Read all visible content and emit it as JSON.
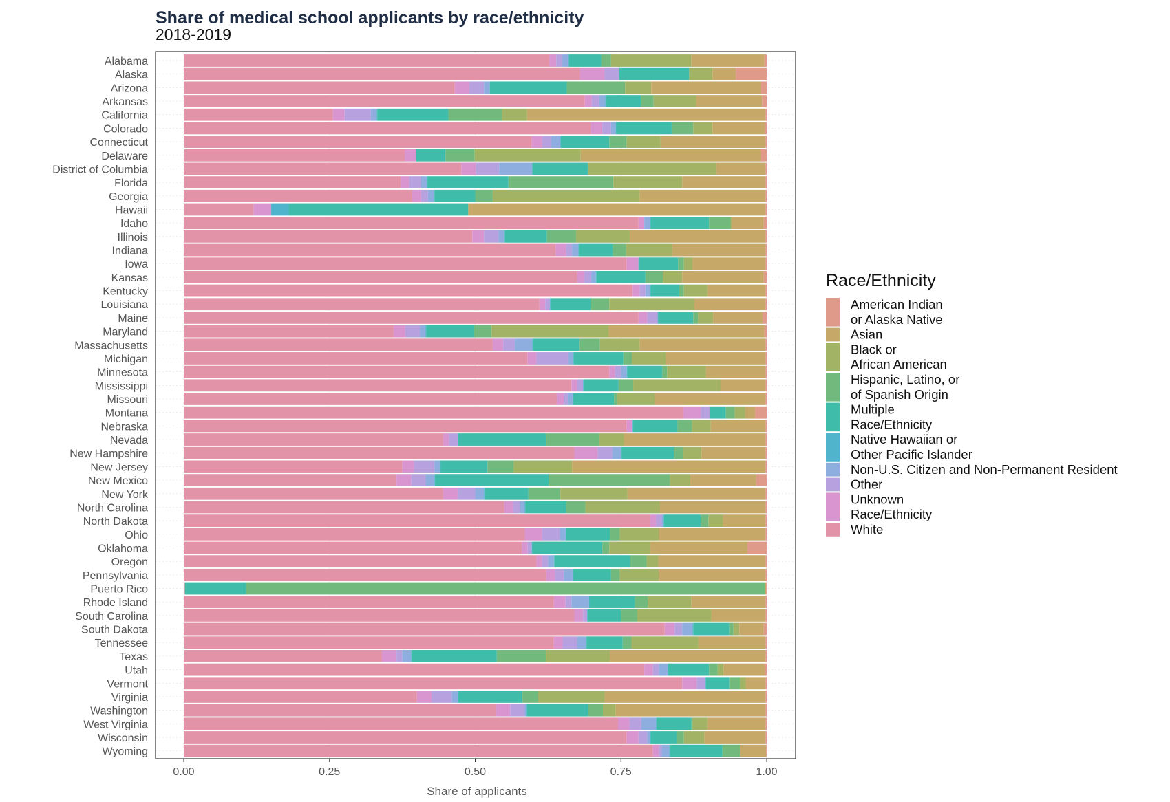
{
  "chart_data": {
    "type": "bar",
    "orientation": "horizontal",
    "stacked": true,
    "title": "Share of medical school applicants by race/ethnicity",
    "subtitle": "2018-2019",
    "xlabel": "Share of applicants",
    "ylabel": "",
    "xlim": [
      0,
      1
    ],
    "x_ticks": [
      "0.00",
      "0.25",
      "0.50",
      "0.75",
      "1.00"
    ],
    "grid": true,
    "legend_position": "right",
    "legend_title": "Race/Ethnicity",
    "stack_order": [
      "White",
      "Unknown Race/Ethnicity",
      "Other",
      "Non-U.S. Citizen and Non-Permanent Resident",
      "Native Hawaiian or Other Pacific Islander",
      "Multiple Race/Ethnicity",
      "Hispanic, Latino, or of Spanish Origin",
      "Black or African American",
      "Asian",
      "American Indian or Alaska Native"
    ],
    "legend": [
      {
        "key": "aian",
        "lines": [
          "American Indian",
          "or Alaska Native"
        ],
        "color": "#df9a8a"
      },
      {
        "key": "asian",
        "lines": [
          "Asian"
        ],
        "color": "#c6a968"
      },
      {
        "key": "black",
        "lines": [
          "Black or",
          "African American"
        ],
        "color": "#a2b365"
      },
      {
        "key": "hisp",
        "lines": [
          "Hispanic, Latino, or",
          "of Spanish Origin"
        ],
        "color": "#72b97e"
      },
      {
        "key": "multi",
        "lines": [
          "Multiple",
          "Race/Ethnicity"
        ],
        "color": "#40bcaa"
      },
      {
        "key": "nhpi",
        "lines": [
          "Native Hawaiian or",
          "Other Pacific Islander"
        ],
        "color": "#4fb4cc"
      },
      {
        "key": "noncit",
        "lines": [
          "Non-U.S. Citizen and Non-Permanent Resident"
        ],
        "color": "#8eaee0"
      },
      {
        "key": "other",
        "lines": [
          "Other"
        ],
        "color": "#b7a1df"
      },
      {
        "key": "unknown",
        "lines": [
          "Unknown",
          "Race/Ethnicity"
        ],
        "color": "#d895cf"
      },
      {
        "key": "white",
        "lines": [
          "White"
        ],
        "color": "#e393a8"
      }
    ],
    "categories": [
      "Alabama",
      "Alaska",
      "Arizona",
      "Arkansas",
      "California",
      "Colorado",
      "Connecticut",
      "Delaware",
      "District of Columbia",
      "Florida",
      "Georgia",
      "Hawaii",
      "Idaho",
      "Illinois",
      "Indiana",
      "Iowa",
      "Kansas",
      "Kentucky",
      "Louisiana",
      "Maine",
      "Maryland",
      "Massachusetts",
      "Michigan",
      "Minnesota",
      "Mississippi",
      "Missouri",
      "Montana",
      "Nebraska",
      "Nevada",
      "New Hampshire",
      "New Jersey",
      "New Mexico",
      "New York",
      "North Carolina",
      "North Dakota",
      "Ohio",
      "Oklahoma",
      "Oregon",
      "Pennsylvania",
      "Puerto Rico",
      "Rhode Island",
      "South Carolina",
      "South Dakota",
      "Tennessee",
      "Texas",
      "Utah",
      "Vermont",
      "Virginia",
      "Washington",
      "West Virginia",
      "Wisconsin",
      "Wyoming"
    ],
    "series_keys": [
      "white",
      "unknown",
      "other",
      "noncit",
      "nhpi",
      "multi",
      "hisp",
      "black",
      "asian",
      "aian"
    ],
    "rows": [
      [
        0.627,
        0.012,
        0.01,
        0.011,
        0.001,
        0.055,
        0.017,
        0.138,
        0.125,
        0.004
      ],
      [
        0.68,
        0.042,
        0.025,
        0.0,
        0.0,
        0.12,
        0.0,
        0.04,
        0.04,
        0.053
      ],
      [
        0.465,
        0.025,
        0.025,
        0.01,
        0.0,
        0.132,
        0.1,
        0.045,
        0.188,
        0.01
      ],
      [
        0.688,
        0.012,
        0.013,
        0.01,
        0.001,
        0.06,
        0.022,
        0.073,
        0.113,
        0.008
      ],
      [
        0.256,
        0.02,
        0.045,
        0.01,
        0.001,
        0.122,
        0.092,
        0.043,
        0.409,
        0.002
      ],
      [
        0.698,
        0.02,
        0.015,
        0.008,
        0.001,
        0.095,
        0.037,
        0.033,
        0.09,
        0.003
      ],
      [
        0.597,
        0.018,
        0.015,
        0.016,
        0.001,
        0.083,
        0.03,
        0.058,
        0.18,
        0.002
      ],
      [
        0.379,
        0.02,
        0.0,
        0.0,
        0.0,
        0.05,
        0.05,
        0.182,
        0.309,
        0.01
      ],
      [
        0.476,
        0.025,
        0.04,
        0.057,
        0.0,
        0.095,
        0.0,
        0.22,
        0.085,
        0.002
      ],
      [
        0.372,
        0.015,
        0.02,
        0.01,
        0.001,
        0.139,
        0.18,
        0.118,
        0.143,
        0.002
      ],
      [
        0.392,
        0.015,
        0.012,
        0.01,
        0.001,
        0.07,
        0.03,
        0.252,
        0.216,
        0.002
      ],
      [
        0.12,
        0.03,
        0.0,
        0.0,
        0.03,
        0.308,
        0.0,
        0.0,
        0.51,
        0.002
      ],
      [
        0.78,
        0.01,
        0.0,
        0.01,
        0.001,
        0.1,
        0.037,
        0.002,
        0.055,
        0.005
      ],
      [
        0.495,
        0.02,
        0.025,
        0.01,
        0.001,
        0.072,
        0.05,
        0.092,
        0.233,
        0.002
      ],
      [
        0.638,
        0.018,
        0.01,
        0.011,
        0.001,
        0.058,
        0.023,
        0.079,
        0.16,
        0.002
      ],
      [
        0.76,
        0.02,
        0.0,
        0.0,
        0.001,
        0.067,
        0.01,
        0.015,
        0.125,
        0.002
      ],
      [
        0.675,
        0.012,
        0.012,
        0.008,
        0.001,
        0.084,
        0.03,
        0.033,
        0.14,
        0.005
      ],
      [
        0.77,
        0.012,
        0.01,
        0.008,
        0.001,
        0.049,
        0.008,
        0.04,
        0.1,
        0.002
      ],
      [
        0.61,
        0.01,
        0.008,
        0.0,
        0.001,
        0.069,
        0.032,
        0.146,
        0.122,
        0.002
      ],
      [
        0.78,
        0.015,
        0.018,
        0.0,
        0.001,
        0.06,
        0.008,
        0.026,
        0.085,
        0.007
      ],
      [
        0.36,
        0.02,
        0.025,
        0.01,
        0.001,
        0.082,
        0.03,
        0.201,
        0.267,
        0.004
      ],
      [
        0.53,
        0.018,
        0.02,
        0.03,
        0.001,
        0.08,
        0.035,
        0.068,
        0.216,
        0.002
      ],
      [
        0.59,
        0.015,
        0.055,
        0.008,
        0.001,
        0.085,
        0.015,
        0.058,
        0.171,
        0.002
      ],
      [
        0.73,
        0.01,
        0.01,
        0.01,
        0.001,
        0.06,
        0.008,
        0.067,
        0.102,
        0.002
      ],
      [
        0.665,
        0.01,
        0.01,
        0.0,
        0.001,
        0.06,
        0.025,
        0.15,
        0.077,
        0.002
      ],
      [
        0.64,
        0.012,
        0.007,
        0.008,
        0.001,
        0.07,
        0.005,
        0.065,
        0.19,
        0.002
      ],
      [
        0.857,
        0.03,
        0.015,
        0.0,
        0.001,
        0.027,
        0.015,
        0.018,
        0.017,
        0.02
      ],
      [
        0.76,
        0.01,
        0.0,
        0.0,
        0.001,
        0.076,
        0.025,
        0.032,
        0.094,
        0.002
      ],
      [
        0.445,
        0.01,
        0.015,
        0.0,
        0.001,
        0.15,
        0.092,
        0.042,
        0.243,
        0.002
      ],
      [
        0.67,
        0.04,
        0.025,
        0.015,
        0.001,
        0.09,
        0.015,
        0.032,
        0.11,
        0.002
      ],
      [
        0.375,
        0.02,
        0.035,
        0.01,
        0.001,
        0.08,
        0.045,
        0.1,
        0.332,
        0.002
      ],
      [
        0.365,
        0.025,
        0.025,
        0.015,
        0.001,
        0.195,
        0.208,
        0.035,
        0.113,
        0.018
      ],
      [
        0.445,
        0.025,
        0.03,
        0.015,
        0.001,
        0.075,
        0.055,
        0.115,
        0.237,
        0.002
      ],
      [
        0.55,
        0.015,
        0.012,
        0.008,
        0.001,
        0.07,
        0.033,
        0.128,
        0.181,
        0.002
      ],
      [
        0.8,
        0.01,
        0.01,
        0.003,
        0.001,
        0.063,
        0.013,
        0.025,
        0.073,
        0.002
      ],
      [
        0.585,
        0.03,
        0.03,
        0.01,
        0.001,
        0.075,
        0.017,
        0.067,
        0.183,
        0.002
      ],
      [
        0.58,
        0.01,
        0.007,
        0.0,
        0.001,
        0.12,
        0.012,
        0.07,
        0.167,
        0.033
      ],
      [
        0.605,
        0.01,
        0.01,
        0.01,
        0.001,
        0.13,
        0.028,
        0.02,
        0.184,
        0.002
      ],
      [
        0.622,
        0.015,
        0.015,
        0.015,
        0.001,
        0.065,
        0.015,
        0.067,
        0.183,
        0.002
      ],
      [
        0.002,
        0.0,
        0.0,
        0.0,
        0.0,
        0.105,
        0.89,
        0.0,
        0.002,
        0.001
      ],
      [
        0.635,
        0.02,
        0.01,
        0.03,
        0.001,
        0.078,
        0.022,
        0.075,
        0.127,
        0.002
      ],
      [
        0.67,
        0.015,
        0.007,
        0.0,
        0.001,
        0.057,
        0.028,
        0.127,
        0.093,
        0.002
      ],
      [
        0.825,
        0.017,
        0.013,
        0.018,
        0.001,
        0.062,
        0.007,
        0.01,
        0.042,
        0.005
      ],
      [
        0.635,
        0.015,
        0.025,
        0.015,
        0.001,
        0.062,
        0.015,
        0.115,
        0.115,
        0.002
      ],
      [
        0.34,
        0.025,
        0.01,
        0.015,
        0.001,
        0.146,
        0.084,
        0.11,
        0.267,
        0.002
      ],
      [
        0.79,
        0.015,
        0.01,
        0.015,
        0.001,
        0.07,
        0.015,
        0.01,
        0.071,
        0.003
      ],
      [
        0.855,
        0.025,
        0.015,
        0.0,
        0.001,
        0.04,
        0.018,
        0.01,
        0.034,
        0.002
      ],
      [
        0.4,
        0.025,
        0.035,
        0.01,
        0.001,
        0.11,
        0.027,
        0.114,
        0.276,
        0.002
      ],
      [
        0.535,
        0.025,
        0.025,
        0.003,
        0.001,
        0.105,
        0.025,
        0.022,
        0.257,
        0.002
      ],
      [
        0.745,
        0.02,
        0.02,
        0.025,
        0.001,
        0.06,
        0.002,
        0.025,
        0.1,
        0.002
      ],
      [
        0.76,
        0.02,
        0.015,
        0.005,
        0.001,
        0.045,
        0.012,
        0.035,
        0.105,
        0.002
      ],
      [
        0.805,
        0.01,
        0.005,
        0.013,
        0.001,
        0.09,
        0.03,
        0.0,
        0.045,
        0.001
      ]
    ]
  }
}
